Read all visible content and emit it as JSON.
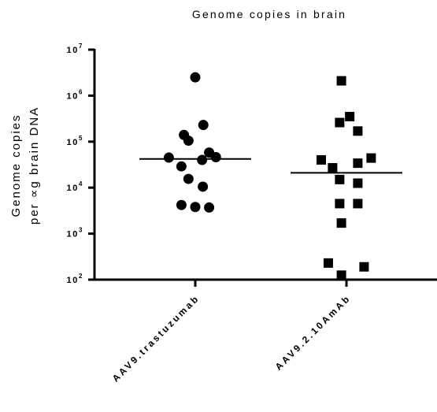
{
  "chart_data": {
    "type": "scatter",
    "title": "Genome copies in brain",
    "ylabel": [
      "Genome copies",
      "per ∝g brain DNA"
    ],
    "xlabel": "",
    "y_scale": "log10",
    "ylim": [
      100,
      10000000
    ],
    "y_ticks": [
      {
        "base": "10",
        "exp": "2",
        "value": 100
      },
      {
        "base": "10",
        "exp": "3",
        "value": 1000
      },
      {
        "base": "10",
        "exp": "4",
        "value": 10000
      },
      {
        "base": "10",
        "exp": "5",
        "value": 100000
      },
      {
        "base": "10",
        "exp": "6",
        "value": 1000000
      },
      {
        "base": "10",
        "exp": "7",
        "value": 10000000
      }
    ],
    "categories": [
      "AAV9.trastuzumab",
      "AAV9.2.10AmAb"
    ],
    "grid": false,
    "legend": "none",
    "series": [
      {
        "category": "AAV9.trastuzumab",
        "marker": "circle",
        "color": "#000000",
        "median": 42000,
        "points": [
          {
            "offset": -0.0,
            "y": 2500000
          },
          {
            "offset": -0.45,
            "y": 140000
          },
          {
            "offset": 0.32,
            "y": 230000
          },
          {
            "offset": -0.27,
            "y": 105000
          },
          {
            "offset": 0.55,
            "y": 58000
          },
          {
            "offset": -1.05,
            "y": 45000
          },
          {
            "offset": 0.82,
            "y": 46000
          },
          {
            "offset": 0.27,
            "y": 40000
          },
          {
            "offset": -0.55,
            "y": 29000
          },
          {
            "offset": -0.27,
            "y": 15500
          },
          {
            "offset": 0.3,
            "y": 10500
          },
          {
            "offset": -0.55,
            "y": 4200
          },
          {
            "offset": 0.0,
            "y": 3800
          },
          {
            "offset": 0.55,
            "y": 3700
          }
        ]
      },
      {
        "category": "AAV9.2.10AmAb",
        "marker": "square",
        "color": "#000000",
        "median": 21000,
        "points": [
          {
            "offset": -0.2,
            "y": 2100000
          },
          {
            "offset": 0.13,
            "y": 350000
          },
          {
            "offset": -0.27,
            "y": 260000
          },
          {
            "offset": 0.45,
            "y": 170000
          },
          {
            "offset": -1.0,
            "y": 40000
          },
          {
            "offset": 0.98,
            "y": 44000
          },
          {
            "offset": 0.45,
            "y": 34000
          },
          {
            "offset": -0.55,
            "y": 27000
          },
          {
            "offset": -0.27,
            "y": 15000
          },
          {
            "offset": 0.45,
            "y": 12500
          },
          {
            "offset": -0.27,
            "y": 4500
          },
          {
            "offset": 0.45,
            "y": 4500
          },
          {
            "offset": -0.2,
            "y": 1700
          },
          {
            "offset": -0.72,
            "y": 230
          },
          {
            "offset": 0.7,
            "y": 190
          },
          {
            "offset": -0.2,
            "y": 125
          }
        ]
      }
    ]
  }
}
